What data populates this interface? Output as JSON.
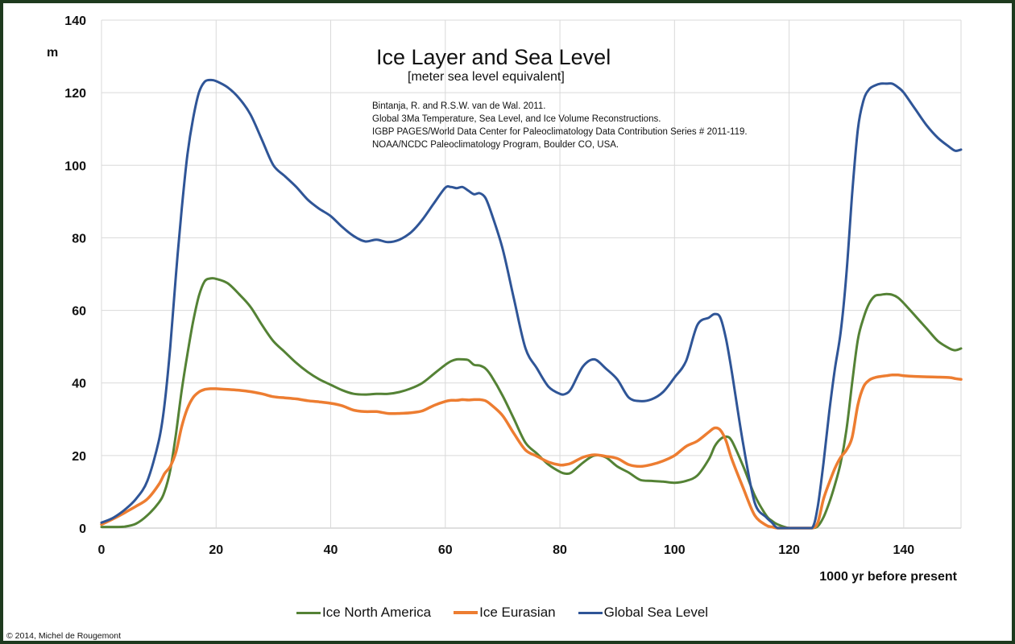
{
  "chart_data": {
    "type": "line",
    "title": "Ice Layer and Sea Level",
    "subtitle": "[meter sea level equivalent]",
    "annotation": [
      "Bintanja, R. and R.S.W. van de Wal. 2011.",
      "Global 3Ma Temperature, Sea Level, and Ice Volume Reconstructions.",
      "IGBP PAGES/World Data Center for Paleoclimatology  Data Contribution Series # 2011-119.",
      "NOAA/NCDC Paleoclimatology Program, Boulder CO, USA."
    ],
    "xlabel": "1000 yr before present",
    "ylabel": "m",
    "xlim": [
      0,
      150
    ],
    "ylim": [
      0,
      140
    ],
    "xticks": [
      0,
      20,
      40,
      60,
      80,
      100,
      120,
      140
    ],
    "yticks": [
      0,
      20,
      40,
      60,
      80,
      100,
      120,
      140
    ],
    "grid": true,
    "legend_position": "bottom",
    "x": [
      0,
      2,
      4,
      6,
      8,
      10,
      11,
      12,
      13,
      14,
      15,
      16,
      17,
      18,
      19,
      20,
      22,
      24,
      26,
      28,
      30,
      32,
      34,
      36,
      38,
      40,
      42,
      44,
      46,
      48,
      50,
      52,
      54,
      56,
      58,
      60,
      61,
      62,
      63,
      64,
      65,
      66,
      67,
      68,
      70,
      72,
      74,
      76,
      78,
      80,
      81,
      82,
      84,
      86,
      88,
      90,
      92,
      94,
      96,
      98,
      100,
      102,
      104,
      106,
      107,
      108,
      109,
      110,
      112,
      114,
      116,
      117,
      118,
      120,
      122,
      124,
      125,
      126,
      127,
      128,
      129,
      130,
      131,
      132,
      133,
      134,
      135,
      136,
      137,
      138,
      139,
      140,
      142,
      144,
      146,
      148,
      149,
      150
    ],
    "series": [
      {
        "name": "Ice North America",
        "color": "#548235",
        "values": [
          0.3,
          0.3,
          0.4,
          1.2,
          3.5,
          7,
          10,
          16,
          26,
          38,
          48,
          57,
          64,
          68,
          68.8,
          68.7,
          67.5,
          64.5,
          61,
          56,
          51.5,
          48.5,
          45.5,
          43,
          41,
          39.5,
          38,
          37,
          36.8,
          37,
          37,
          37.5,
          38.5,
          40,
          42.5,
          45,
          46,
          46.5,
          46.5,
          46.3,
          45,
          44.8,
          44,
          42,
          36.5,
          30,
          23.5,
          20.5,
          17.5,
          15.5,
          15,
          15.3,
          18,
          20,
          19.5,
          17,
          15.3,
          13.3,
          13,
          12.8,
          12.5,
          13,
          14.5,
          19,
          22.5,
          24.5,
          25.2,
          24,
          17,
          9,
          3.5,
          2,
          1,
          0,
          0,
          0,
          0.5,
          3,
          7,
          12,
          18,
          27,
          40,
          52,
          58,
          62,
          64,
          64.3,
          64.5,
          64.3,
          63.5,
          62,
          58.5,
          55,
          51.5,
          49.5,
          49,
          49.5
        ]
      },
      {
        "name": "Ice Eurasian",
        "color": "#ed7d31",
        "values": [
          1,
          2.5,
          4.2,
          6,
          8,
          12,
          15,
          17,
          21,
          28,
          33,
          36,
          37.5,
          38.2,
          38.4,
          38.4,
          38.2,
          38,
          37.6,
          37,
          36.2,
          35.9,
          35.6,
          35.1,
          34.8,
          34.4,
          33.7,
          32.5,
          32.1,
          32.1,
          31.6,
          31.6,
          31.8,
          32.3,
          33.8,
          34.9,
          35.2,
          35.2,
          35.4,
          35.3,
          35.4,
          35.4,
          35.1,
          34,
          31,
          26,
          21.5,
          19.8,
          18.2,
          17.4,
          17.5,
          17.9,
          19.5,
          20.2,
          19.8,
          19.2,
          17.5,
          17,
          17.5,
          18.5,
          20,
          22.5,
          24,
          26.5,
          27.6,
          27,
          24,
          19,
          11,
          3.5,
          0.8,
          0.3,
          0,
          0,
          0,
          0,
          1.5,
          8,
          12.5,
          16.5,
          19.5,
          21.5,
          25,
          34,
          39,
          40.8,
          41.5,
          41.8,
          42,
          42.2,
          42.2,
          42,
          41.8,
          41.7,
          41.6,
          41.5,
          41.2,
          41
        ]
      },
      {
        "name": "Global Sea Level",
        "color": "#2f5597",
        "values": [
          1.5,
          2.8,
          5,
          8,
          13,
          24,
          34,
          50,
          70,
          88,
          103,
          113,
          120,
          123,
          123.5,
          123.2,
          121.5,
          118.5,
          114,
          107,
          100,
          97,
          94,
          90.5,
          88,
          86,
          83,
          80.5,
          79,
          79.5,
          78.8,
          79.5,
          81.5,
          85,
          89.5,
          93.8,
          94,
          93.7,
          94,
          93,
          92,
          92.3,
          91,
          87,
          77,
          63,
          49.5,
          44,
          39,
          37,
          37,
          38.5,
          44.5,
          46.5,
          44,
          41,
          36,
          35,
          35.5,
          37.5,
          41.5,
          46,
          56,
          58,
          59,
          58,
          52,
          43,
          23,
          7,
          3,
          1.5,
          0,
          0,
          0,
          0,
          6,
          18,
          32,
          44,
          54,
          70,
          92,
          110,
          118,
          121,
          122,
          122.5,
          122.5,
          122.5,
          121.5,
          120,
          115.5,
          111,
          107.5,
          105,
          104,
          104.3
        ]
      }
    ]
  },
  "footer": {
    "copyright": "© 2014, Michel de Rougemont"
  }
}
